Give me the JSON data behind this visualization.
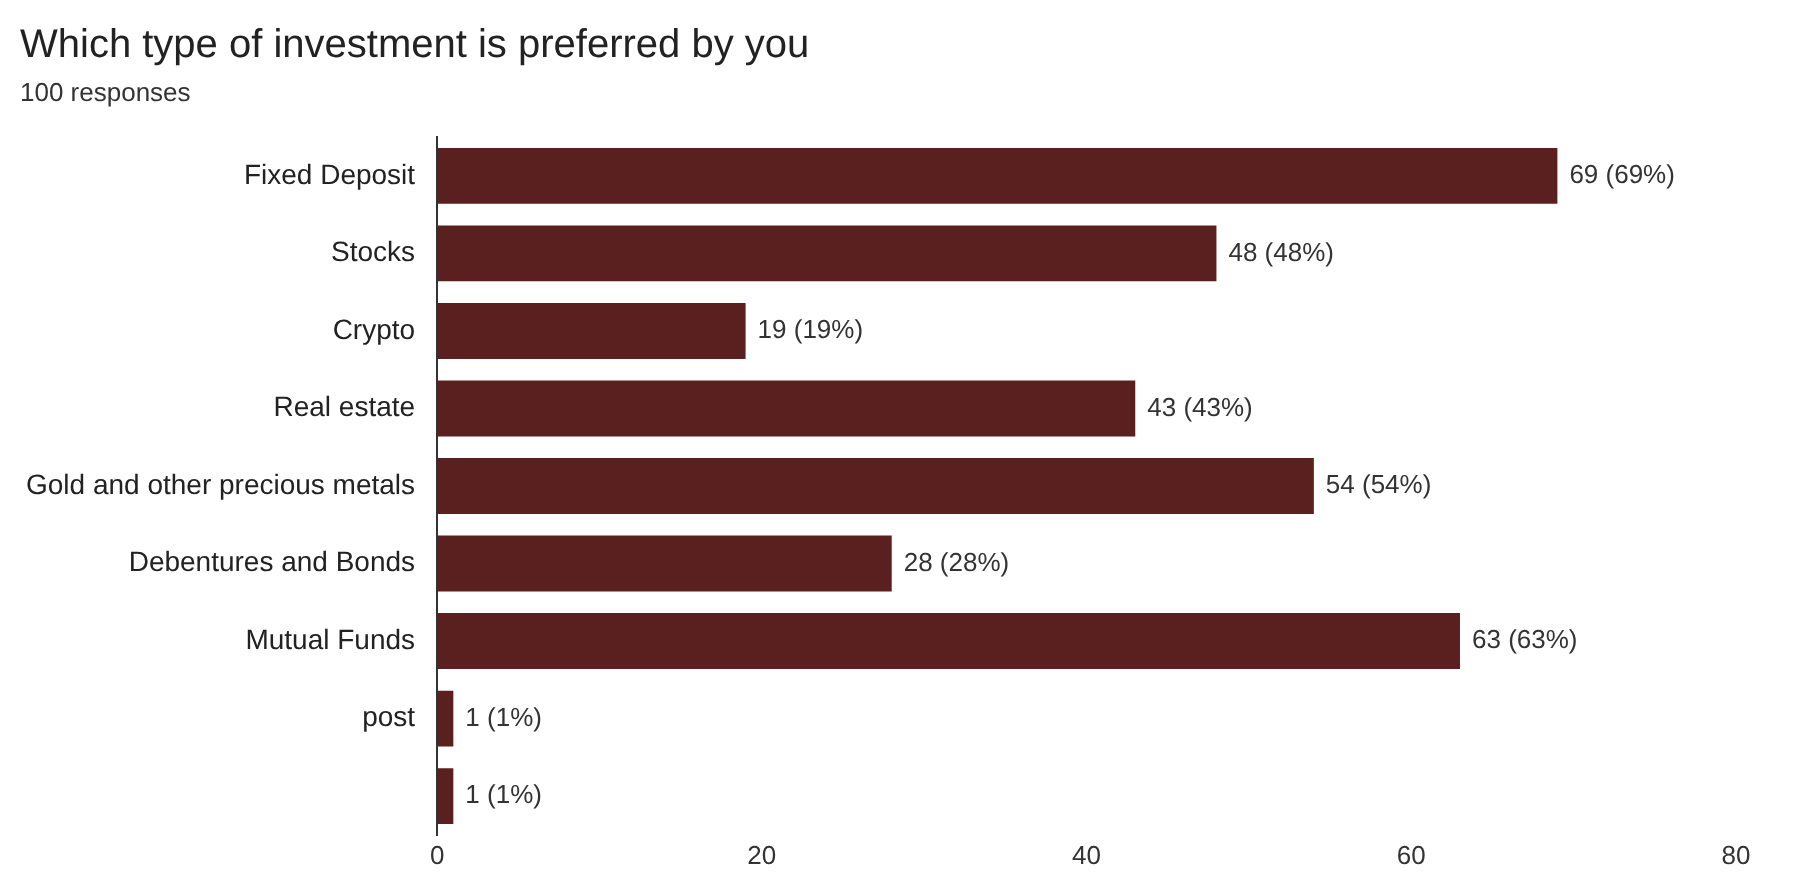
{
  "chart_data": {
    "type": "bar",
    "orientation": "horizontal",
    "title": "Which type of investment is preferred by you",
    "subtitle": "100 responses",
    "categories": [
      "Fixed Deposit",
      "Stocks",
      "Crypto",
      "Real estate",
      "Gold and other precious metals",
      "Debentures and Bonds",
      "Mutual Funds",
      "post",
      null
    ],
    "values": [
      69,
      48,
      19,
      43,
      54,
      28,
      63,
      1,
      1
    ],
    "value_labels": [
      "69 (69%)",
      "48 (48%)",
      "19 (19%)",
      "43 (43%)",
      "54 (54%)",
      "28 (28%)",
      "63 (63%)",
      "1 (1%)",
      "1 (1%)"
    ],
    "color": "#5a1f1f",
    "xlim": [
      0,
      80
    ],
    "xticks": [
      0,
      20,
      40,
      60,
      80
    ],
    "grid": false,
    "legend": false
  }
}
